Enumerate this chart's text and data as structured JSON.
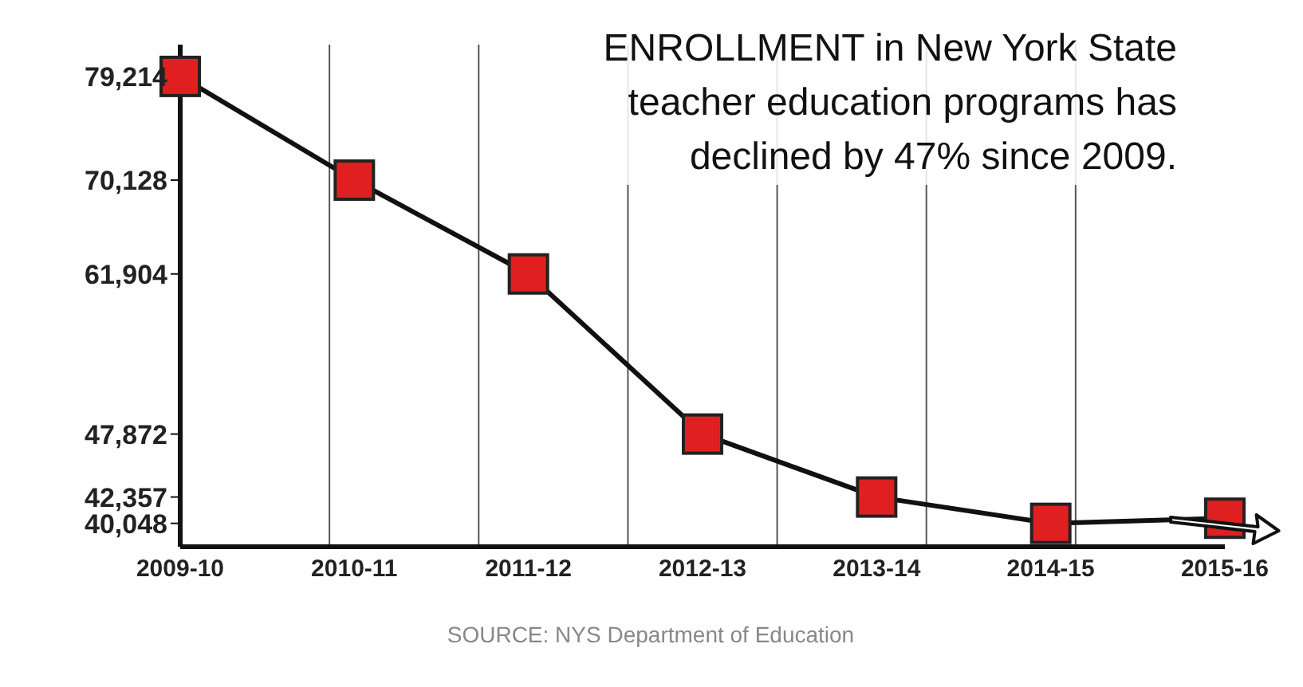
{
  "chart_data": {
    "type": "line",
    "title": "ENROLLMENT in New York State teacher education programs has declined by 47% since 2009.",
    "annotations": [
      "SOURCE: NYS Department of Education"
    ],
    "categories": [
      "2009-10",
      "2010-11",
      "2011-12",
      "2012-13",
      "2013-14",
      "2014-15",
      "2015-16"
    ],
    "series": [
      {
        "color": "#e02020",
        "values": [
          79214,
          70128,
          61904,
          47872,
          42357,
          40048,
          40500
        ]
      }
    ],
    "ylim": [
      38000,
      82000
    ],
    "yticks": [
      {
        "value": 40048,
        "label": "40,048"
      },
      {
        "value": 42357,
        "label": "42,357"
      },
      {
        "value": 47872,
        "label": "47,872"
      },
      {
        "value": 61904,
        "label": "61,904"
      },
      {
        "value": 70128,
        "label": "70,128"
      },
      {
        "value": 79214,
        "label": "79,214"
      }
    ],
    "grid": "x",
    "marker": "square",
    "line_style": "solid",
    "legend": false
  }
}
